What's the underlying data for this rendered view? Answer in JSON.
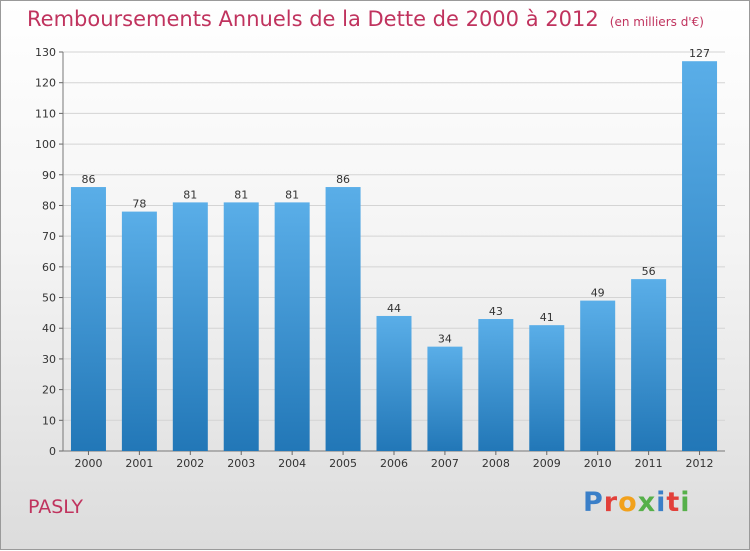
{
  "header": {
    "title": "Remboursements Annuels de la Dette de 2000 à 2012",
    "unit": "(en milliers d'€)"
  },
  "footer": {
    "commune": "PASLY",
    "brand": "Proxiti"
  },
  "colors": {
    "title": "#c0335e",
    "bar_top": "#5aaee8",
    "bar_bottom": "#2277b7",
    "grid": "#d4d4d4",
    "axis_text": "#333333"
  },
  "chart_data": {
    "type": "bar",
    "categories": [
      "2000",
      "2001",
      "2002",
      "2003",
      "2004",
      "2005",
      "2006",
      "2007",
      "2008",
      "2009",
      "2010",
      "2011",
      "2012"
    ],
    "values": [
      86,
      78,
      81,
      81,
      81,
      86,
      44,
      34,
      43,
      41,
      49,
      56,
      127
    ],
    "title": "Remboursements Annuels de la Dette de 2000 à 2012",
    "subtitle": "(en milliers d'€)",
    "ylim": [
      0,
      130
    ],
    "yticks": [
      0,
      10,
      20,
      30,
      40,
      50,
      60,
      70,
      80,
      90,
      100,
      110,
      120,
      130
    ],
    "grid": true,
    "data_labels": true
  }
}
